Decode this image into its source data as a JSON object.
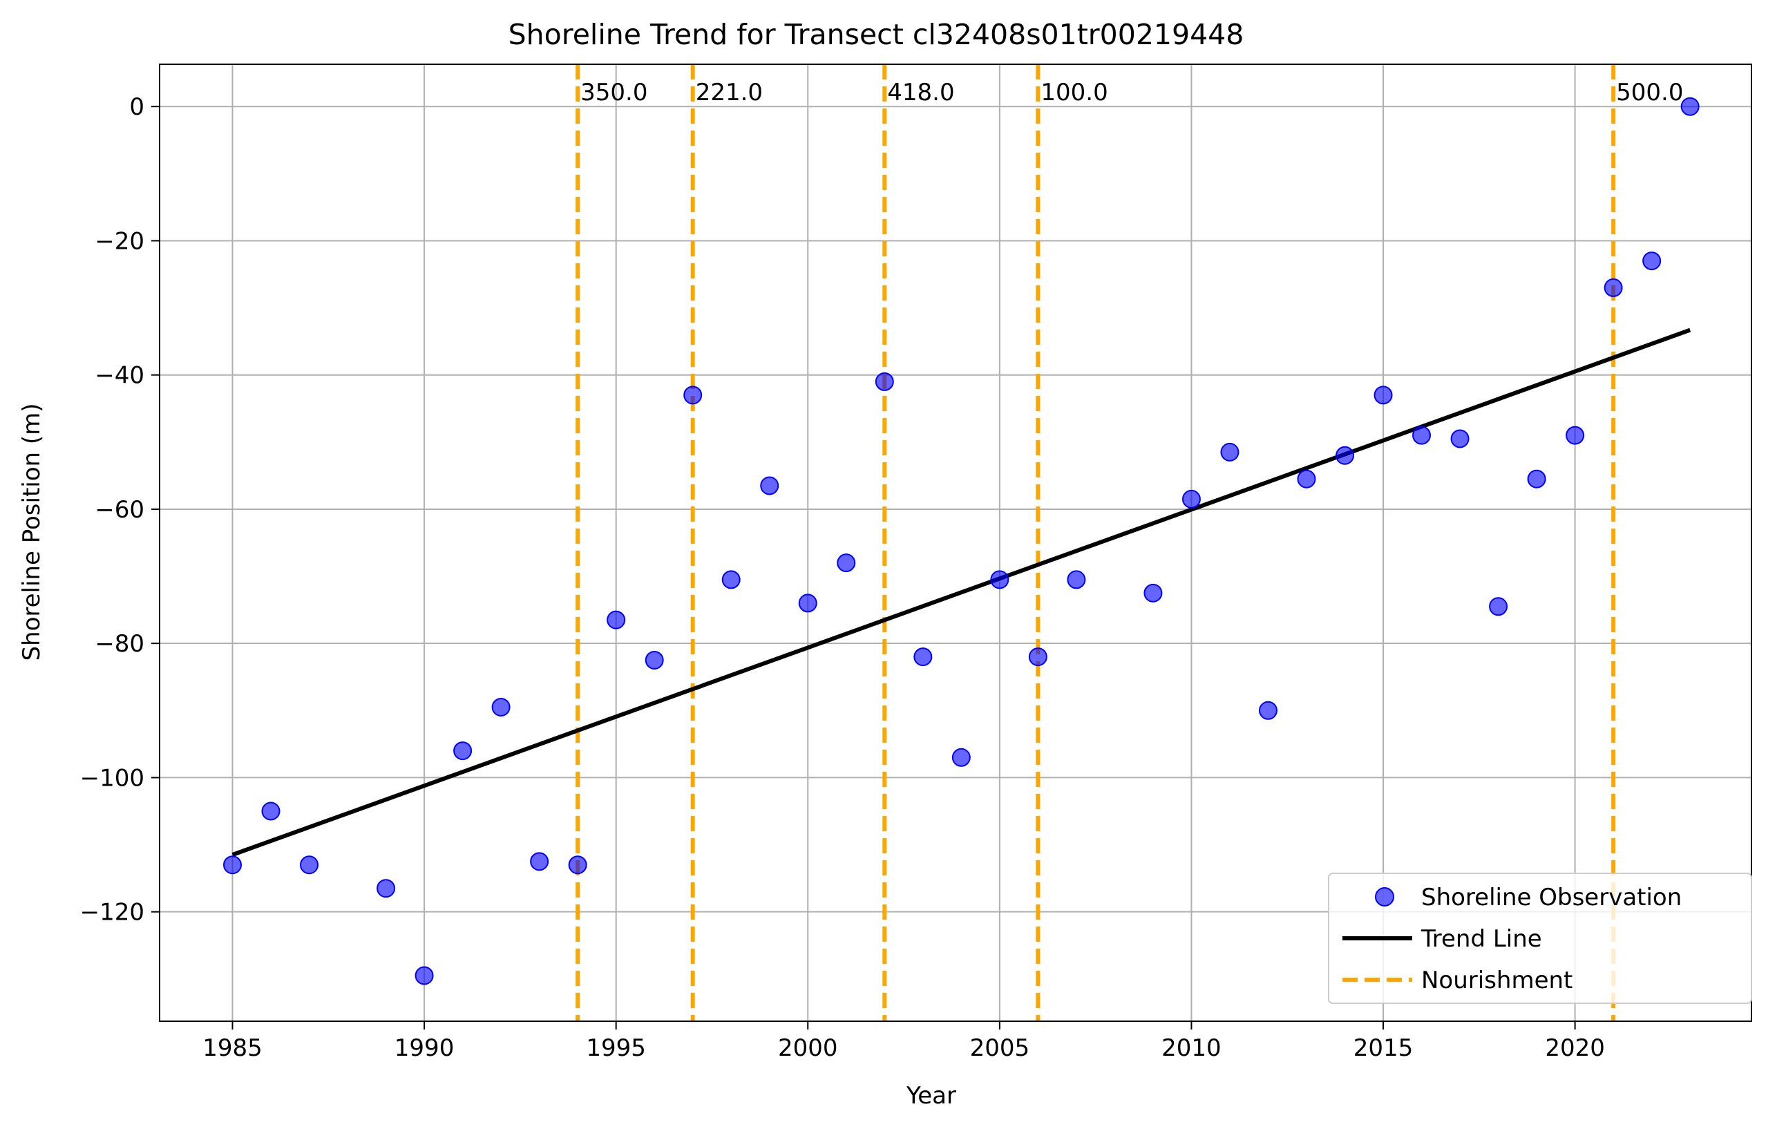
{
  "chart_data": {
    "type": "scatter",
    "title": "Shoreline Trend for Transect cl32408s01tr00219448",
    "xlabel": "Year",
    "ylabel": "Shoreline Position (m)",
    "xlim": [
      1983.1,
      1924.6
    ],
    "ylim": [
      -136.3,
      6.3
    ],
    "xticks": [
      1985,
      1990,
      1995,
      2000,
      2005,
      2010,
      2015,
      2020
    ],
    "yticks": [
      0,
      -20,
      -40,
      -60,
      -80,
      -100,
      -120
    ],
    "ytick_labels": [
      "0",
      "−20",
      "−40",
      "−60",
      "−80",
      "−100",
      "−120"
    ],
    "grid": true,
    "legend_position": "bottom-right",
    "legend": [
      "Shoreline Observation",
      "Trend Line",
      "Nourishment"
    ],
    "series": [
      {
        "name": "Shoreline Observation",
        "kind": "scatter",
        "color": "#0000ff",
        "x": [
          1985,
          1986,
          1987,
          1989,
          1990,
          1991,
          1992,
          1993,
          1994,
          1995,
          1996,
          1997,
          1998,
          1999,
          2000,
          2001,
          2002,
          2003,
          2004,
          2005,
          2006,
          2007,
          2009,
          2010,
          2011,
          2012,
          2013,
          2014,
          2015,
          2016,
          2017,
          2018,
          2019,
          2020,
          2021,
          2022,
          2023
        ],
        "y": [
          -113,
          -105,
          -113,
          -116.5,
          -129.5,
          -96,
          -89.5,
          -112.5,
          -113,
          -76.5,
          -82.5,
          -43,
          -70.5,
          -56.5,
          -74,
          -68,
          -41,
          -82,
          -97,
          -70.5,
          -82,
          -70.5,
          -72.5,
          -58.5,
          -51.5,
          -90,
          -55.5,
          -52,
          -43,
          -49,
          -49.5,
          -74.5,
          -55.5,
          -49,
          -27,
          -23,
          0
        ]
      },
      {
        "name": "Trend Line",
        "kind": "line",
        "color": "#000000",
        "x": [
          1985,
          2023
        ],
        "y": [
          -111.5,
          -33.3
        ]
      },
      {
        "name": "Nourishment",
        "kind": "vline",
        "color": "#ffa500",
        "x": [
          1994,
          1997,
          2002,
          2006,
          2021
        ],
        "labels": [
          "350.0",
          "221.0",
          "418.0",
          "100.0",
          "500.0"
        ]
      }
    ]
  }
}
